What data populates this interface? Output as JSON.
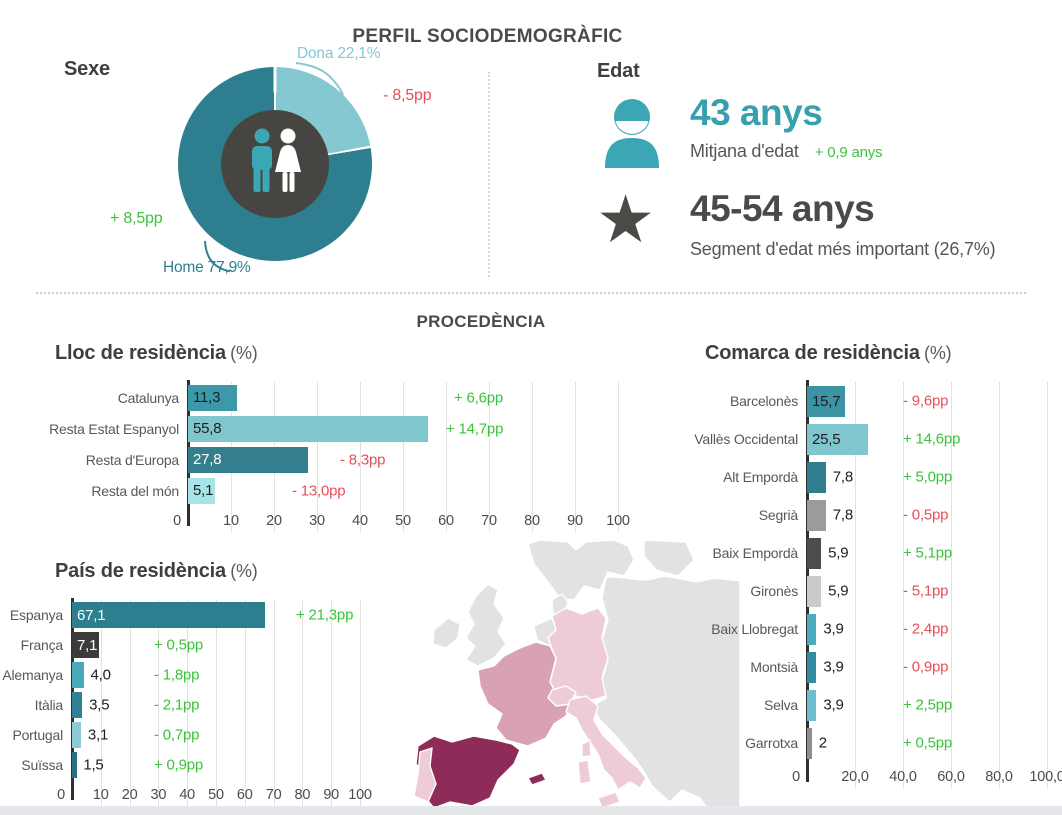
{
  "header": {
    "title": "PERFIL SOCIODEMOGRÀFIC"
  },
  "section_procedencia": {
    "title": "PROCEDÈNCIA"
  },
  "colors": {
    "green": "#3cc23c",
    "red": "#e94e58",
    "teal_accent": "#36a0af",
    "dark_text": "#4a4a4a"
  },
  "edat": {
    "title": "Edat",
    "mitjana_value": "43 anys",
    "mitjana_label": "Mitjana d'edat",
    "mitjana_change": "+ 0,9 anys",
    "segment_value": "45-54 anys",
    "segment_label": "Segment d'edat més important (26,7%)"
  },
  "map": {
    "country_colors": {
      "Espanya": "#8d2c59",
      "França": "#d9a2b4",
      "Alemanya": "#eeccd5",
      "Itàlia": "#eeccd5",
      "Portugal": "#eeccd5",
      "Suïssa": "#eeccd5",
      "altres": "#e2e2e5"
    }
  },
  "chart_data": [
    {
      "type": "pie",
      "key": "sexe",
      "title": "Sexe",
      "slices": [
        {
          "label": "Dona",
          "value": 22.1,
          "display": "Dona 22,1%",
          "change": "- 8,5pp",
          "change_color": "#e94e58",
          "color": "#85c8d1"
        },
        {
          "label": "Home",
          "value": 77.9,
          "display": "Home 77,9%",
          "change": "+ 8,5pp",
          "change_color": "#3cc23c",
          "color": "#2d7f90"
        }
      ]
    },
    {
      "type": "bar",
      "key": "lloc",
      "title": "Lloc de residència",
      "title_suffix": "(%)",
      "xlabel": "",
      "ylabel": "",
      "xlim": [
        0,
        100
      ],
      "xtick_values": [
        0,
        10,
        20,
        30,
        40,
        50,
        60,
        70,
        80,
        90,
        100
      ],
      "xtick_labels": [
        "0",
        "10",
        "20",
        "30",
        "40",
        "50",
        "60",
        "70",
        "80",
        "90",
        "100"
      ],
      "rows": [
        {
          "label": "Catalunya",
          "value": 11.3,
          "value_display": "11,3",
          "bar_color": "#3b99a9",
          "value_inside": true,
          "value_color": "#1e1e1e",
          "change": "+ 6,6pp",
          "change_color": "#3cc23c"
        },
        {
          "label": "Resta Estat Espanyol",
          "value": 55.8,
          "value_display": "55,8",
          "bar_color": "#7fc6cf",
          "value_inside": true,
          "value_color": "#1e1e1e",
          "change": "+ 14,7pp",
          "change_color": "#3cc23c"
        },
        {
          "label": "Resta d'Europa",
          "value": 27.8,
          "value_display": "27,8",
          "bar_color": "#357e8d",
          "value_inside": true,
          "value_color": "#ffffff",
          "change": "- 8,3pp",
          "change_color": "#e94e58"
        },
        {
          "label": "Resta del món",
          "value": 5.1,
          "value_display": "5,1",
          "bar_color": "#a9e3ea",
          "value_inside": true,
          "value_color": "#1e1e1e",
          "change": "- 13,0pp",
          "change_color": "#e94e58"
        }
      ]
    },
    {
      "type": "bar",
      "key": "comarca",
      "title": "Comarca de residència",
      "title_suffix": "(%)",
      "xlabel": "",
      "ylabel": "",
      "xlim": [
        0,
        100
      ],
      "xtick_values": [
        0,
        20,
        40,
        60,
        80,
        100
      ],
      "xtick_labels": [
        "0",
        "20,0",
        "40,0",
        "60,0",
        "80,0",
        "100,0"
      ],
      "rows": [
        {
          "label": "Barcelonès",
          "value": 15.7,
          "value_display": "15,7",
          "bar_color": "#3b93a4",
          "value_inside": true,
          "value_color": "#1e1e1e",
          "change": "- 9,6pp",
          "change_color": "#e94e58"
        },
        {
          "label": "Vallès Occidental",
          "value": 25.5,
          "value_display": "25,5",
          "bar_color": "#7fc6cf",
          "value_inside": true,
          "value_color": "#1e1e1e",
          "change": "+ 14,6pp",
          "change_color": "#3cc23c"
        },
        {
          "label": "Alt Empordà",
          "value": 7.8,
          "value_display": "7,8",
          "bar_color": "#2f7d8e",
          "value_inside": false,
          "value_color": "#1e1e1e",
          "change": "+ 5,0pp",
          "change_color": "#3cc23c"
        },
        {
          "label": "Segrià",
          "value": 7.8,
          "value_display": "7,8",
          "bar_color": "#9b9b9b",
          "value_inside": false,
          "value_color": "#1e1e1e",
          "change": "- 0,5pp",
          "change_color": "#e94e58"
        },
        {
          "label": "Baix Empordà",
          "value": 5.9,
          "value_display": "5,9",
          "bar_color": "#4c4c4c",
          "value_inside": false,
          "value_color": "#1e1e1e",
          "change": "+ 5,1pp",
          "change_color": "#3cc23c"
        },
        {
          "label": "Gironès",
          "value": 5.9,
          "value_display": "5,9",
          "bar_color": "#cbcbcb",
          "value_inside": false,
          "value_color": "#1e1e1e",
          "change": "- 5,1pp",
          "change_color": "#e94e58"
        },
        {
          "label": "Baix Llobregat",
          "value": 3.9,
          "value_display": "3,9",
          "bar_color": "#4aacbc",
          "value_inside": false,
          "value_color": "#1e1e1e",
          "change": "- 2,4pp",
          "change_color": "#e94e58"
        },
        {
          "label": "Montsià",
          "value": 3.9,
          "value_display": "3,9",
          "bar_color": "#338da0",
          "value_inside": false,
          "value_color": "#1e1e1e",
          "change": "- 0,9pp",
          "change_color": "#e94e58"
        },
        {
          "label": "Selva",
          "value": 3.9,
          "value_display": "3,9",
          "bar_color": "#6fc0cf",
          "value_inside": false,
          "value_color": "#1e1e1e",
          "change": "+ 2,5pp",
          "change_color": "#3cc23c"
        },
        {
          "label": "Garrotxa",
          "value": 2,
          "value_display": "2",
          "bar_color": "#8f8f8f",
          "value_inside": false,
          "value_color": "#1e1e1e",
          "change": "+ 0,5pp",
          "change_color": "#3cc23c"
        }
      ]
    },
    {
      "type": "bar",
      "key": "pais",
      "title": "País de residència",
      "title_suffix": "(%)",
      "xlabel": "",
      "ylabel": "",
      "xlim": [
        0,
        100
      ],
      "xtick_values": [
        0,
        10,
        20,
        30,
        40,
        50,
        60,
        70,
        80,
        90,
        100
      ],
      "xtick_labels": [
        "0",
        "10",
        "20",
        "30",
        "40",
        "50",
        "60",
        "70",
        "80",
        "90",
        "100"
      ],
      "rows": [
        {
          "label": "Espanya",
          "value": 67.1,
          "value_display": "67,1",
          "bar_color": "#2d7f90",
          "value_inside": true,
          "value_color": "#ffffff",
          "change": "+ 21,3pp",
          "change_color": "#3cc23c"
        },
        {
          "label": "França",
          "value": 7.1,
          "value_display": "7,1",
          "bar_color": "#3b3b3b",
          "value_inside": true,
          "value_color": "#ffffff",
          "change": "+ 0,5pp",
          "change_color": "#3cc23c"
        },
        {
          "label": "Alemanya",
          "value": 4.0,
          "value_display": "4,0",
          "bar_color": "#48a9b8",
          "value_inside": false,
          "value_color": "#1e1e1e",
          "change": "- 1,8pp",
          "change_color": "#3cc23c"
        },
        {
          "label": "Itàlia",
          "value": 3.5,
          "value_display": "3,5",
          "bar_color": "#2f8196",
          "value_inside": false,
          "value_color": "#1e1e1e",
          "change": "- 2,1pp",
          "change_color": "#3cc23c"
        },
        {
          "label": "Portugal",
          "value": 3.1,
          "value_display": "3,1",
          "bar_color": "#8ccbd6",
          "value_inside": false,
          "value_color": "#1e1e1e",
          "change": "- 0,7pp",
          "change_color": "#3cc23c"
        },
        {
          "label": "Suïssa",
          "value": 1.5,
          "value_display": "1,5",
          "bar_color": "#2c6f82",
          "value_inside": false,
          "value_color": "#1e1e1e",
          "change": "+ 0,9pp",
          "change_color": "#3cc23c"
        }
      ]
    }
  ]
}
